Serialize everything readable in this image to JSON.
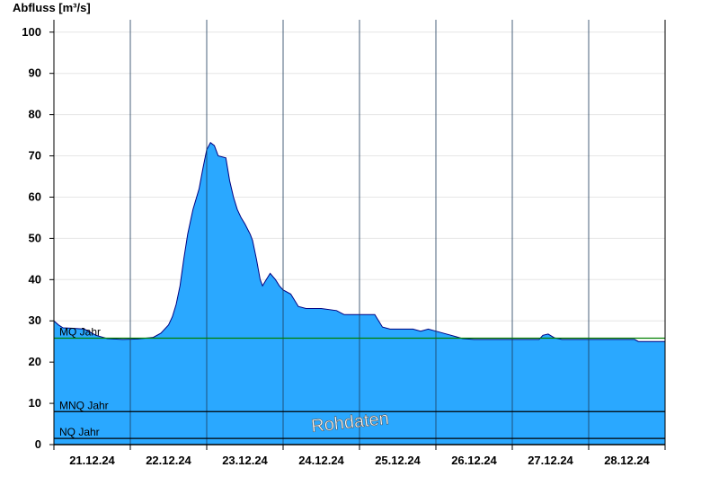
{
  "chart_data": {
    "type": "area",
    "title": "",
    "ylabel": "Abfluss [m³/s]",
    "xlabel": "",
    "ylim": [
      0,
      103
    ],
    "xlim": [
      0,
      8
    ],
    "yticks": [
      0,
      10,
      20,
      30,
      40,
      50,
      60,
      70,
      80,
      90,
      100
    ],
    "categories": [
      "21.12.24",
      "22.12.24",
      "23.12.24",
      "24.12.24",
      "25.12.24",
      "26.12.24",
      "27.12.24",
      "28.12.24"
    ],
    "series": [
      {
        "values": [
          [
            0.0,
            30.0
          ],
          [
            0.06,
            29.0
          ],
          [
            0.12,
            28.3
          ],
          [
            0.25,
            28.2
          ],
          [
            0.4,
            28.0
          ],
          [
            0.55,
            26.5
          ],
          [
            0.7,
            25.7
          ],
          [
            0.9,
            25.5
          ],
          [
            1.1,
            25.6
          ],
          [
            1.3,
            26.0
          ],
          [
            1.4,
            27.0
          ],
          [
            1.5,
            29.0
          ],
          [
            1.55,
            31.0
          ],
          [
            1.6,
            34.0
          ],
          [
            1.65,
            38.5
          ],
          [
            1.7,
            45.0
          ],
          [
            1.75,
            51.0
          ],
          [
            1.82,
            57.0
          ],
          [
            1.9,
            62.0
          ],
          [
            1.95,
            67.0
          ],
          [
            2.0,
            71.5
          ],
          [
            2.05,
            73.2
          ],
          [
            2.1,
            72.5
          ],
          [
            2.15,
            70.0
          ],
          [
            2.25,
            69.5
          ],
          [
            2.3,
            64.0
          ],
          [
            2.35,
            60.0
          ],
          [
            2.4,
            57.0
          ],
          [
            2.45,
            55.0
          ],
          [
            2.5,
            53.5
          ],
          [
            2.57,
            51.0
          ],
          [
            2.6,
            49.5
          ],
          [
            2.65,
            45.0
          ],
          [
            2.7,
            40.0
          ],
          [
            2.73,
            38.5
          ],
          [
            2.78,
            40.0
          ],
          [
            2.83,
            41.5
          ],
          [
            2.9,
            40.0
          ],
          [
            2.95,
            38.5
          ],
          [
            3.0,
            37.5
          ],
          [
            3.1,
            36.5
          ],
          [
            3.2,
            33.5
          ],
          [
            3.3,
            33.0
          ],
          [
            3.5,
            33.0
          ],
          [
            3.7,
            32.5
          ],
          [
            3.8,
            31.5
          ],
          [
            3.9,
            31.5
          ],
          [
            4.1,
            31.5
          ],
          [
            4.2,
            31.5
          ],
          [
            4.3,
            28.5
          ],
          [
            4.4,
            28.0
          ],
          [
            4.7,
            28.0
          ],
          [
            4.8,
            27.5
          ],
          [
            4.9,
            28.0
          ],
          [
            5.0,
            27.5
          ],
          [
            5.2,
            26.5
          ],
          [
            5.35,
            25.7
          ],
          [
            5.5,
            25.5
          ],
          [
            6.0,
            25.5
          ],
          [
            6.35,
            25.5
          ],
          [
            6.4,
            26.5
          ],
          [
            6.47,
            26.8
          ],
          [
            6.55,
            25.9
          ],
          [
            6.65,
            25.5
          ],
          [
            7.0,
            25.5
          ],
          [
            7.6,
            25.5
          ],
          [
            7.65,
            25.0
          ],
          [
            8.0,
            25.0
          ]
        ]
      }
    ],
    "reference_lines": [
      {
        "label": "MQ Jahr",
        "value": 25.8,
        "color": "#008000"
      },
      {
        "label": "MNQ Jahr",
        "value": 8.0,
        "color": "#000000"
      },
      {
        "label": "NQ Jahr",
        "value": 1.5,
        "color": "#000000"
      }
    ],
    "fill_color": "#2aa8ff",
    "line_color": "#000080",
    "watermark": "Rohdaten",
    "grid": true
  }
}
